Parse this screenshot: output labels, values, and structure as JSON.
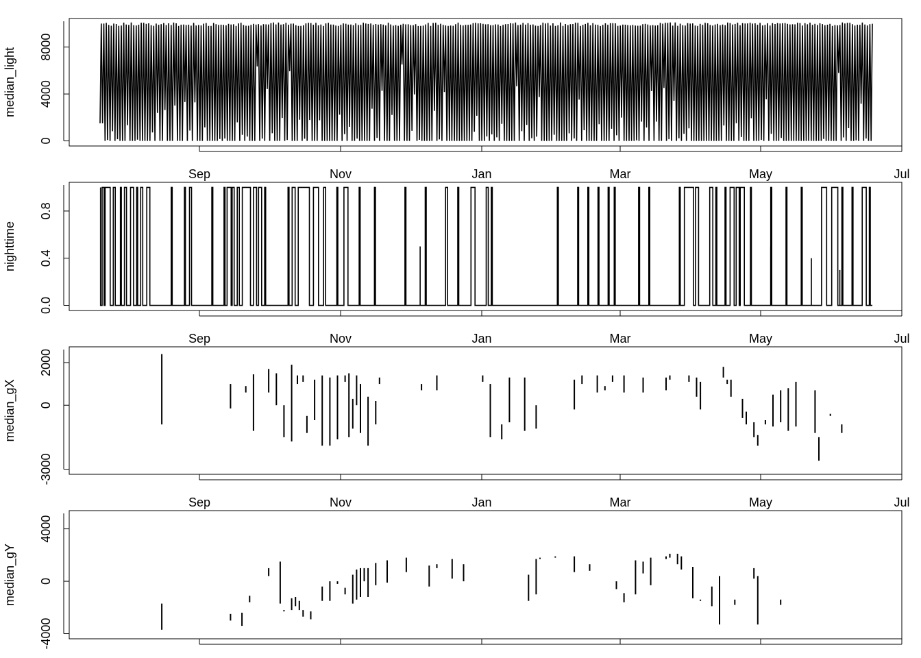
{
  "chart_data": [
    {
      "type": "line",
      "ylabel": "median_light",
      "ylim": [
        0,
        10000
      ],
      "y_ticks": [
        0,
        4000,
        8000
      ],
      "y_tick_labels": [
        "0",
        "4000",
        "8000"
      ],
      "x_ticks": [
        "Sep",
        "Nov",
        "Jan",
        "Mar",
        "May",
        "Jul"
      ],
      "series": [
        {
          "style": "dense-oscillation",
          "x_range": [
            "Jul 11",
            "Jun 19"
          ],
          "values": [
            1500,
            10000,
            6000,
            10000,
            0,
            10000,
            200,
            10000,
            0,
            10000,
            3500,
            10000,
            0,
            10000,
            800,
            10000,
            0,
            10000,
            4500,
            10000,
            0,
            10000,
            2000,
            10000,
            0,
            10000,
            7000,
            10000,
            0,
            10000,
            300,
            10000,
            0,
            10000,
            5000,
            10000,
            0,
            10000,
            1200,
            10000,
            0,
            10000,
            8000,
            10000,
            0,
            10000,
            2500,
            10000,
            0,
            10000
          ]
        }
      ]
    },
    {
      "type": "line",
      "ylabel": "nighttime",
      "ylim": [
        0,
        1
      ],
      "y_ticks": [
        0,
        0.4,
        0.8
      ],
      "y_tick_labels": [
        "0.0",
        "0.4",
        "0.8"
      ],
      "x_ticks": [
        "Sep",
        "Nov",
        "Jan",
        "Mar",
        "May",
        "Jul"
      ],
      "pulses": [
        [
          0.05,
          0.05
        ],
        [
          0.2,
          0.4
        ],
        [
          0.5,
          1.0
        ],
        [
          1.3,
          1.5
        ],
        [
          2.0,
          2.1
        ],
        [
          2.4,
          2.6
        ],
        [
          3.0,
          3.3
        ],
        [
          3.6,
          3.7
        ],
        [
          4.0,
          4.2
        ],
        [
          4.6,
          4.9
        ],
        [
          7.0,
          7.1
        ],
        [
          8.3,
          8.4
        ],
        [
          8.8,
          9.0
        ],
        [
          11.0,
          11.1
        ],
        [
          12.2,
          12.3
        ],
        [
          12.5,
          12.9
        ],
        [
          13.0,
          13.2
        ],
        [
          13.5,
          13.7
        ],
        [
          14.0,
          14.8
        ],
        [
          15.1,
          15.4
        ],
        [
          15.6,
          15.9
        ],
        [
          16.2,
          16.3
        ],
        [
          18.5,
          18.6
        ],
        [
          18.9,
          19.2
        ],
        [
          19.5,
          20.6
        ],
        [
          21.0,
          21.5
        ],
        [
          22.0,
          22.2
        ],
        [
          23.3,
          23.4
        ],
        [
          24.0,
          24.4
        ],
        [
          25.5,
          25.6
        ],
        [
          27.0,
          27.1
        ],
        [
          30.0,
          30.1
        ],
        [
          32.0,
          32.1
        ],
        [
          34.0,
          34.2
        ],
        [
          35.2,
          35.3
        ],
        [
          36.5,
          36.9
        ],
        [
          38.0,
          38.2
        ],
        [
          38.5,
          38.6
        ],
        [
          45.0,
          45.1
        ],
        [
          47.0,
          47.1
        ],
        [
          48.0,
          48.1
        ],
        [
          49.0,
          49.1
        ],
        [
          50.0,
          50.1
        ],
        [
          50.6,
          50.7
        ],
        [
          53.0,
          53.1
        ],
        [
          54.0,
          54.1
        ],
        [
          57.0,
          57.1
        ],
        [
          57.5,
          58.4
        ],
        [
          58.6,
          58.9
        ],
        [
          60.0,
          60.3
        ],
        [
          60.6,
          60.7
        ],
        [
          61.5,
          61.6
        ],
        [
          62.0,
          62.4
        ],
        [
          62.6,
          62.9
        ],
        [
          63.0,
          63.4
        ],
        [
          64.0,
          64.1
        ],
        [
          66.0,
          66.1
        ],
        [
          67.5,
          67.6
        ],
        [
          69.0,
          69.1
        ],
        [
          71.0,
          71.5
        ],
        [
          72.0,
          72.6
        ],
        [
          73.0,
          73.1
        ],
        [
          74.0,
          74.1
        ],
        [
          75.0,
          75.4
        ],
        [
          75.7,
          75.8
        ]
      ],
      "partial_pulses": [
        [
          31.5,
          0.5
        ],
        [
          66.0,
          0.5
        ],
        [
          70.0,
          0.4
        ],
        [
          72.8,
          0.3
        ]
      ]
    },
    {
      "type": "line",
      "ylabel": "median_gX",
      "ylim": [
        -3000,
        2500
      ],
      "y_ticks": [
        -3000,
        0,
        2000
      ],
      "y_tick_labels": [
        "-3000",
        "0",
        "2000"
      ],
      "x_ticks": [
        "Sep",
        "Nov",
        "Jan",
        "Mar",
        "May",
        "Jul"
      ],
      "segments": [
        [
          14,
          -900,
          2400
        ],
        [
          32,
          -150,
          1000
        ],
        [
          36,
          600,
          900
        ],
        [
          38,
          -1200,
          1450
        ],
        [
          42,
          600,
          1700
        ],
        [
          44,
          0,
          1500
        ],
        [
          46,
          -1500,
          0
        ],
        [
          48,
          -1700,
          1900
        ],
        [
          49.5,
          1000,
          1400
        ],
        [
          51,
          1100,
          1400
        ],
        [
          52,
          -1300,
          -500
        ],
        [
          54,
          -700,
          1200
        ],
        [
          56,
          -1900,
          1400
        ],
        [
          58,
          -1900,
          1300
        ],
        [
          60,
          -1600,
          1400
        ],
        [
          62,
          1100,
          1400
        ],
        [
          63,
          -1500,
          1500
        ],
        [
          64,
          -1100,
          300
        ],
        [
          65,
          0,
          1400
        ],
        [
          66,
          -1300,
          1000
        ],
        [
          68,
          -1900,
          400
        ],
        [
          70,
          -900,
          200
        ],
        [
          71,
          1000,
          1300
        ],
        [
          82,
          700,
          1000
        ],
        [
          86,
          700,
          1400
        ],
        [
          98,
          1100,
          1400
        ],
        [
          100,
          -1500,
          1000
        ],
        [
          103,
          -1600,
          -900
        ],
        [
          105,
          -800,
          1300
        ],
        [
          109,
          -1200,
          1300
        ],
        [
          112,
          -1100,
          0
        ],
        [
          122,
          -200,
          1200
        ],
        [
          124,
          1000,
          1400
        ],
        [
          128,
          600,
          1400
        ],
        [
          130,
          700,
          900
        ],
        [
          132,
          1100,
          1400
        ],
        [
          135,
          600,
          1400
        ],
        [
          140,
          600,
          1300
        ],
        [
          146,
          700,
          1300
        ],
        [
          147,
          1200,
          1400
        ],
        [
          152,
          1100,
          1400
        ],
        [
          154,
          400,
          1300
        ],
        [
          155,
          -200,
          1100
        ],
        [
          161,
          1300,
          1800
        ],
        [
          162,
          1000,
          1200
        ],
        [
          163,
          400,
          1200
        ],
        [
          166,
          -600,
          300
        ],
        [
          167,
          -900,
          -300
        ],
        [
          169,
          -1500,
          -800
        ],
        [
          170,
          -1900,
          -1400
        ],
        [
          172,
          -900,
          -700
        ],
        [
          174,
          -1000,
          500
        ],
        [
          176,
          -800,
          700
        ],
        [
          178,
          -1200,
          800
        ],
        [
          180,
          -1000,
          1100
        ],
        [
          185,
          -1300,
          700
        ],
        [
          186,
          -2600,
          -1500
        ],
        [
          189,
          -500,
          -400
        ],
        [
          192,
          -1300,
          -900
        ]
      ]
    },
    {
      "type": "line",
      "ylabel": "median_gY",
      "ylim": [
        -4000,
        5000
      ],
      "y_ticks": [
        -4000,
        0,
        4000
      ],
      "y_tick_labels": [
        "-4000",
        "0",
        "4000"
      ],
      "x_ticks": [
        "Sep",
        "Nov",
        "Jan",
        "Mar",
        "May",
        "Jul"
      ],
      "segments": [
        [
          14,
          -3700,
          -1700
        ],
        [
          32,
          -3000,
          -2500
        ],
        [
          35,
          -3400,
          -2400
        ],
        [
          37,
          -1600,
          -1100
        ],
        [
          42,
          400,
          1000
        ],
        [
          45,
          -1700,
          1500
        ],
        [
          46,
          -2300,
          -2200
        ],
        [
          48,
          -2200,
          -1300
        ],
        [
          49,
          -1900,
          -1200
        ],
        [
          50,
          -2200,
          -1500
        ],
        [
          51,
          -2700,
          -2200
        ],
        [
          53,
          -2900,
          -2300
        ],
        [
          56,
          -1500,
          -400
        ],
        [
          58,
          -1500,
          0
        ],
        [
          60,
          -200,
          0
        ],
        [
          62,
          -1000,
          -500
        ],
        [
          64,
          -1700,
          500
        ],
        [
          65,
          -1400,
          900
        ],
        [
          66,
          -1200,
          1000
        ],
        [
          67,
          0,
          1000
        ],
        [
          68,
          -1200,
          1000
        ],
        [
          70,
          -300,
          1400
        ],
        [
          73,
          -100,
          1600
        ],
        [
          78,
          700,
          1800
        ],
        [
          84,
          -400,
          1200
        ],
        [
          86,
          1000,
          1300
        ],
        [
          90,
          200,
          1700
        ],
        [
          93,
          0,
          1300
        ],
        [
          110,
          -1500,
          500
        ],
        [
          112,
          -1000,
          1700
        ],
        [
          113,
          1700,
          1800
        ],
        [
          117,
          1800,
          1900
        ],
        [
          122,
          700,
          1900
        ],
        [
          126,
          800,
          1300
        ],
        [
          133,
          -600,
          0
        ],
        [
          135,
          -1600,
          -900
        ],
        [
          138,
          -1000,
          1600
        ],
        [
          140,
          600,
          1500
        ],
        [
          142,
          -300,
          1800
        ],
        [
          146,
          1700,
          1900
        ],
        [
          147,
          1800,
          2100
        ],
        [
          149,
          1300,
          2100
        ],
        [
          150,
          900,
          1900
        ],
        [
          153,
          -1300,
          1100
        ],
        [
          155,
          -1500,
          -1400
        ],
        [
          158,
          -1900,
          -400
        ],
        [
          160,
          -3300,
          400
        ],
        [
          164,
          -1800,
          -1400
        ],
        [
          169,
          200,
          1000
        ],
        [
          170,
          -3300,
          400
        ],
        [
          176,
          -1800,
          -1400
        ]
      ]
    }
  ]
}
